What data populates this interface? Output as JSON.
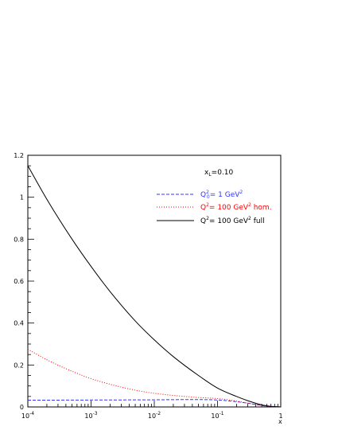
{
  "chart_data": {
    "type": "line",
    "x_scale": "log",
    "xlim": [
      0.0001,
      1
    ],
    "ylim": [
      0,
      1.2
    ],
    "xlabel": "x",
    "ylabel": "",
    "annotation": {
      "base": "x",
      "sub": "L",
      "rest": "=0.10"
    },
    "x_ticks": [
      {
        "value": 0.0001,
        "base": "10",
        "exp": "-4"
      },
      {
        "value": 0.001,
        "base": "10",
        "exp": "-3"
      },
      {
        "value": 0.01,
        "base": "10",
        "exp": "-2"
      },
      {
        "value": 0.1,
        "base": "10",
        "exp": "-1"
      },
      {
        "value": 1,
        "base": "1",
        "exp": ""
      }
    ],
    "y_ticks": [
      {
        "value": 0,
        "label": "0"
      },
      {
        "value": 0.2,
        "label": "0.2"
      },
      {
        "value": 0.4,
        "label": "0.4"
      },
      {
        "value": 0.6,
        "label": "0.6"
      },
      {
        "value": 0.8,
        "label": "0.8"
      },
      {
        "value": 1,
        "label": "1"
      },
      {
        "value": 1.2,
        "label": "1.2"
      }
    ],
    "series": [
      {
        "legend": {
          "q": "Q",
          "sup1": "2",
          "sub1": "0",
          "mid": "= 1 GeV",
          "sup2": "2",
          "tail": ""
        },
        "color": "#3333ff",
        "dash": "4,2",
        "x": [
          0.0001,
          0.001,
          0.01,
          0.03,
          0.1,
          0.2,
          0.3,
          0.5,
          0.7,
          1
        ],
        "y": [
          0.032,
          0.033,
          0.034,
          0.035,
          0.033,
          0.025,
          0.018,
          0.007,
          0.002,
          0
        ]
      },
      {
        "legend": {
          "q": "Q",
          "sup1": "2",
          "sub1": "",
          "mid": "= 100 GeV",
          "sup2": "2",
          "tail": " hom."
        },
        "color": "#ff0000",
        "dash": "1,2",
        "x": [
          0.0001,
          0.0002,
          0.0005,
          0.001,
          0.002,
          0.005,
          0.01,
          0.02,
          0.05,
          0.1,
          0.2,
          0.3,
          0.5,
          0.7,
          1
        ],
        "y": [
          0.275,
          0.225,
          0.17,
          0.135,
          0.108,
          0.08,
          0.065,
          0.055,
          0.045,
          0.04,
          0.028,
          0.018,
          0.007,
          0.002,
          0
        ]
      },
      {
        "legend": {
          "q": "Q",
          "sup1": "2",
          "sub1": "",
          "mid": "= 100 GeV",
          "sup2": "2",
          "tail": " full"
        },
        "color": "#000000",
        "dash": "",
        "x": [
          0.0001,
          0.0002,
          0.0005,
          0.001,
          0.002,
          0.005,
          0.01,
          0.02,
          0.05,
          0.1,
          0.2,
          0.3,
          0.5,
          0.7,
          1
        ],
        "y": [
          1.15,
          0.99,
          0.8,
          0.67,
          0.55,
          0.41,
          0.32,
          0.24,
          0.15,
          0.09,
          0.05,
          0.03,
          0.01,
          0.003,
          0
        ]
      }
    ]
  }
}
